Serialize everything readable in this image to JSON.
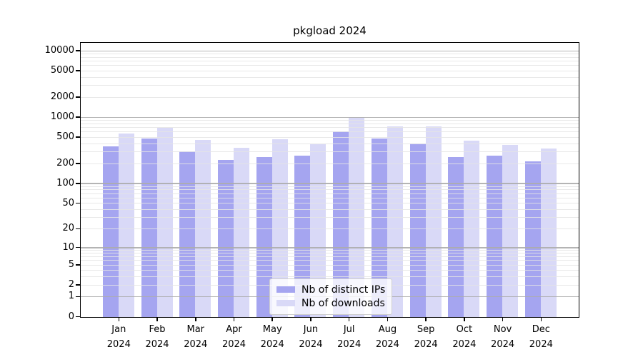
{
  "chart_data": {
    "type": "bar",
    "title": "pkgload 2024",
    "categories": [
      "Jan",
      "Feb",
      "Mar",
      "Apr",
      "May",
      "Jun",
      "Jul",
      "Aug",
      "Sep",
      "Oct",
      "Nov",
      "Dec"
    ],
    "x_year_label": "2024",
    "series": [
      {
        "name": "Nb of distinct IPs",
        "color": "#a5a5f0",
        "values": [
          365,
          490,
          310,
          230,
          255,
          265,
          620,
          480,
          405,
          255,
          270,
          220
        ]
      },
      {
        "name": "Nb of downloads",
        "color": "#d9d9f7",
        "values": [
          570,
          695,
          460,
          350,
          475,
          400,
          1020,
          740,
          745,
          450,
          385,
          345
        ]
      }
    ],
    "yscale": "log10(value+1)",
    "ylim": [
      0,
      13000
    ],
    "yticks": [
      {
        "value": 0,
        "label": "0"
      },
      {
        "value": 1,
        "label": "1"
      },
      {
        "value": 2,
        "label": "2"
      },
      {
        "value": 5,
        "label": "5"
      },
      {
        "value": 10,
        "label": "10"
      },
      {
        "value": 20,
        "label": "20"
      },
      {
        "value": 50,
        "label": "50"
      },
      {
        "value": 100,
        "label": "100"
      },
      {
        "value": 200,
        "label": "200"
      },
      {
        "value": 500,
        "label": "500"
      },
      {
        "value": 1000,
        "label": "1000"
      },
      {
        "value": 2000,
        "label": "2000"
      },
      {
        "value": 5000,
        "label": "5000"
      },
      {
        "value": 10000,
        "label": "10000"
      }
    ],
    "grid": {
      "major_values": [
        1,
        10,
        100,
        1000,
        10000
      ],
      "minor": "2-9 per decade",
      "shown": true
    },
    "legend_position": "lower center"
  }
}
